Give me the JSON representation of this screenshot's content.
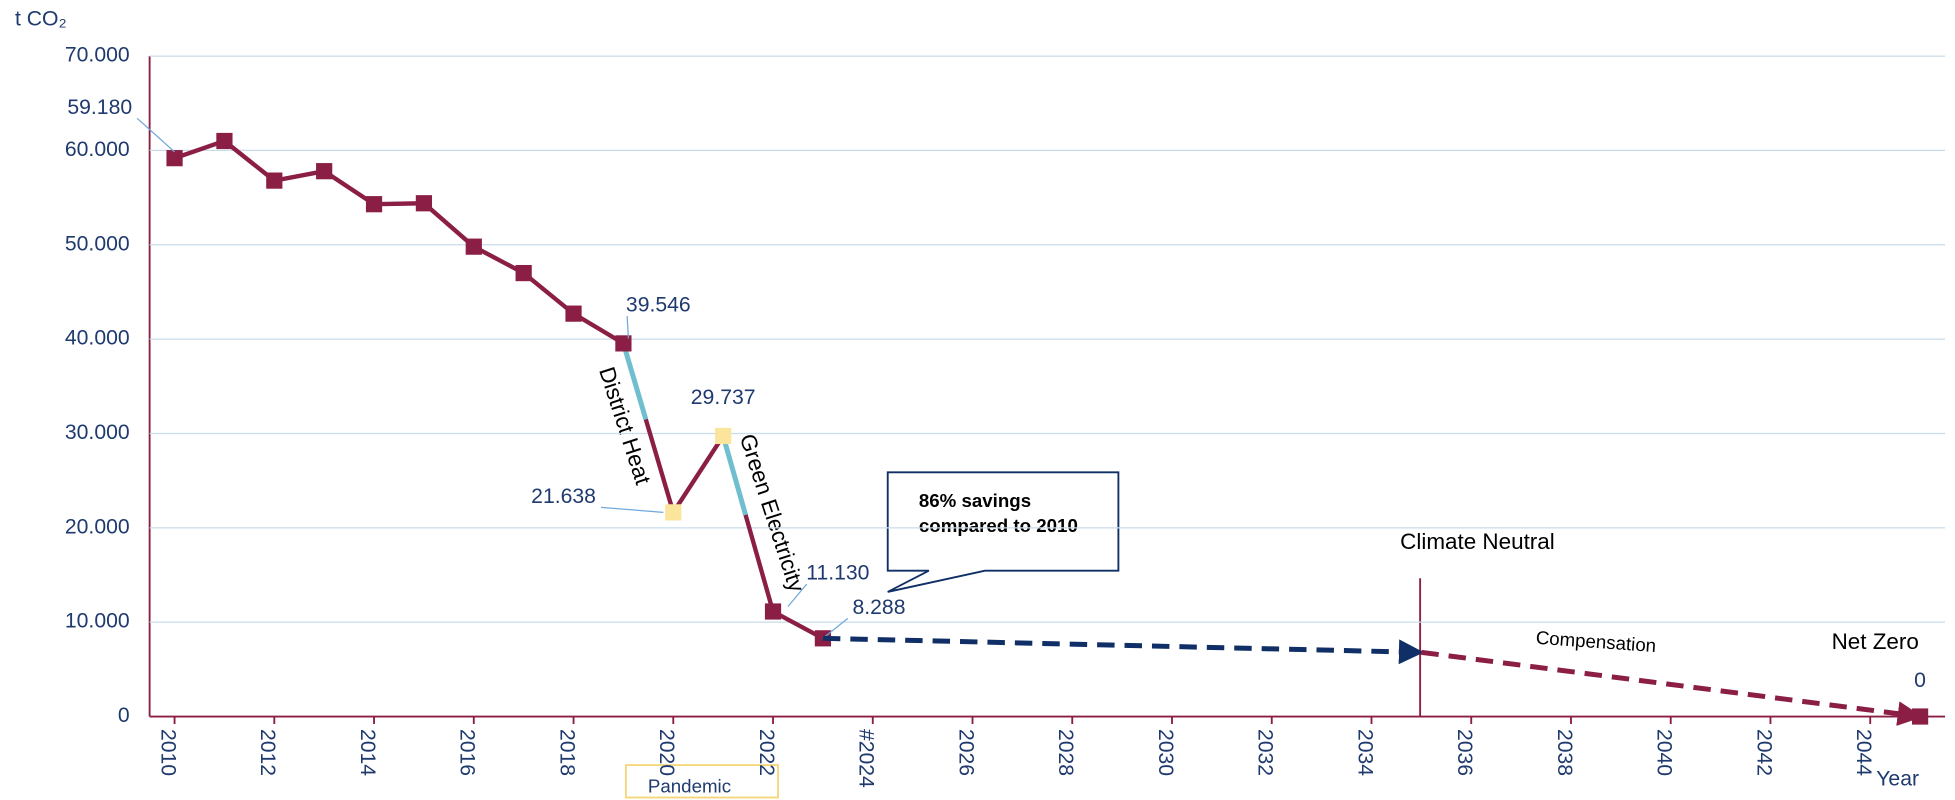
{
  "chart_data": {
    "type": "line",
    "y_label": "t CO₂",
    "x_label": "Year",
    "xlim": [
      2009.5,
      2045.5
    ],
    "ylim": [
      0,
      70000
    ],
    "yticks": [
      0,
      {
        "value": 10000,
        "label": "10.000"
      },
      {
        "value": 20000,
        "label": "20.000"
      },
      {
        "value": 30000,
        "label": "30.000"
      },
      {
        "value": 40000,
        "label": "40.000"
      },
      {
        "value": 50000,
        "label": "50.000"
      },
      {
        "value": 60000,
        "label": "60.000"
      },
      {
        "value": 70000,
        "label": "70.000"
      }
    ],
    "xticks": [
      2010,
      2012,
      2014,
      2016,
      2018,
      2020,
      2022,
      {
        "value": 2024,
        "label": "#2024"
      },
      2026,
      2028,
      2030,
      2032,
      2034,
      2036,
      2038,
      2040,
      2042,
      2044
    ],
    "grid": true,
    "series": [
      {
        "color": "#8b1e45",
        "x": [
          2010,
          2011,
          2012,
          2013,
          2014,
          2015,
          2016,
          2017,
          2018,
          2019,
          2020,
          2021,
          2022,
          2023
        ],
        "values": [
          59180,
          61000,
          56800,
          57800,
          54300,
          54400,
          49800,
          47000,
          42700,
          39546,
          21638,
          29737,
          11130,
          8288
        ],
        "value_labels": [
          "59.180",
          null,
          null,
          null,
          null,
          null,
          null,
          null,
          null,
          "39.546",
          "21.638",
          "29.737",
          "11.130",
          "8.288"
        ],
        "dashed": false
      },
      {
        "color": "#0f2f66",
        "x": [
          2023,
          2035
        ],
        "values": [
          8288,
          6800
        ],
        "dashed": true
      },
      {
        "color": "#8b1e45",
        "x": [
          2035,
          2045
        ],
        "values": [
          6800,
          0
        ],
        "value_labels": [
          null,
          "0"
        ],
        "dashed": true
      }
    ],
    "annotations": {
      "district_heat": "District Heat",
      "green_electricity": "Green Electricity",
      "callout": [
        "86% savings",
        "compared to 2010"
      ],
      "climate_neutral": "Climate Neutral",
      "compensation": "Compensation",
      "net_zero": "Net Zero",
      "pandemic": "Pandemic"
    }
  }
}
